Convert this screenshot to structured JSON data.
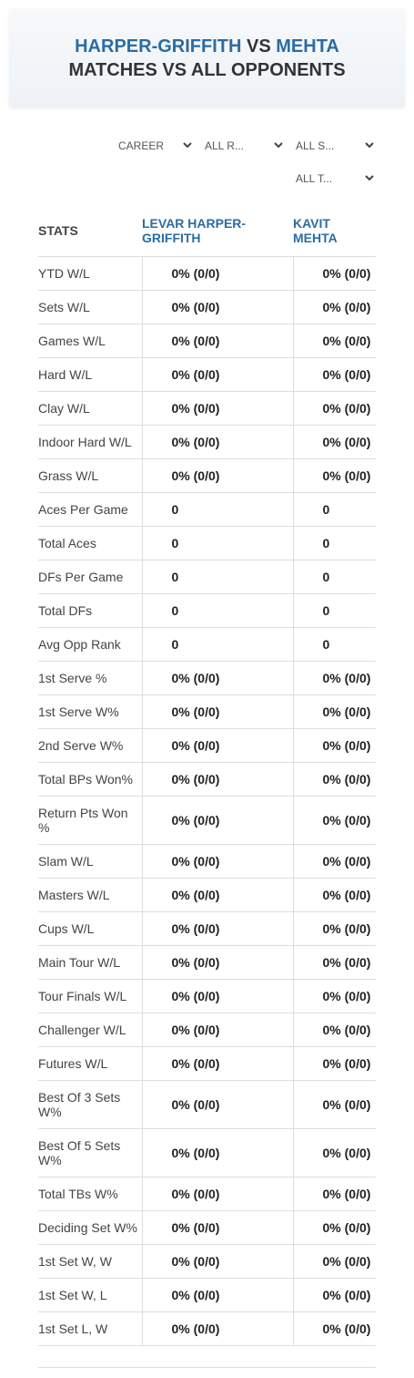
{
  "header": {
    "player1": "HARPER-GRIFFITH",
    "vs": "VS",
    "player2": "MEHTA",
    "subtitle": "MATCHES VS ALL OPPONENTS"
  },
  "filters": [
    "CAREER",
    "ALL R...",
    "ALL S...",
    "ALL T..."
  ],
  "table": {
    "columns": [
      "STATS",
      "LEVAR HARPER-GRIFFITH",
      "KAVIT MEHTA"
    ],
    "rows": [
      [
        "YTD W/L",
        "0% (0/0)",
        "0% (0/0)"
      ],
      [
        "Sets W/L",
        "0% (0/0)",
        "0% (0/0)"
      ],
      [
        "Games W/L",
        "0% (0/0)",
        "0% (0/0)"
      ],
      [
        "Hard W/L",
        "0% (0/0)",
        "0% (0/0)"
      ],
      [
        "Clay W/L",
        "0% (0/0)",
        "0% (0/0)"
      ],
      [
        "Indoor Hard W/L",
        "0% (0/0)",
        "0% (0/0)"
      ],
      [
        "Grass W/L",
        "0% (0/0)",
        "0% (0/0)"
      ],
      [
        "Aces Per Game",
        "0",
        "0"
      ],
      [
        "Total Aces",
        "0",
        "0"
      ],
      [
        "DFs Per Game",
        "0",
        "0"
      ],
      [
        "Total DFs",
        "0",
        "0"
      ],
      [
        "Avg Opp Rank",
        "0",
        "0"
      ],
      [
        "1st Serve %",
        "0% (0/0)",
        "0% (0/0)"
      ],
      [
        "1st Serve W%",
        "0% (0/0)",
        "0% (0/0)"
      ],
      [
        "2nd Serve W%",
        "0% (0/0)",
        "0% (0/0)"
      ],
      [
        "Total BPs Won%",
        "0% (0/0)",
        "0% (0/0)"
      ],
      [
        "Return Pts Won %",
        "0% (0/0)",
        "0% (0/0)"
      ],
      [
        "Slam W/L",
        "0% (0/0)",
        "0% (0/0)"
      ],
      [
        "Masters W/L",
        "0% (0/0)",
        "0% (0/0)"
      ],
      [
        "Cups W/L",
        "0% (0/0)",
        "0% (0/0)"
      ],
      [
        "Main Tour W/L",
        "0% (0/0)",
        "0% (0/0)"
      ],
      [
        "Tour Finals W/L",
        "0% (0/0)",
        "0% (0/0)"
      ],
      [
        "Challenger W/L",
        "0% (0/0)",
        "0% (0/0)"
      ],
      [
        "Futures W/L",
        "0% (0/0)",
        "0% (0/0)"
      ],
      [
        "Best Of 3 Sets W%",
        "0% (0/0)",
        "0% (0/0)"
      ],
      [
        "Best Of 5 Sets W%",
        "0% (0/0)",
        "0% (0/0)"
      ],
      [
        "Total TBs W%",
        "0% (0/0)",
        "0% (0/0)"
      ],
      [
        "Deciding Set W%",
        "0% (0/0)",
        "0% (0/0)"
      ],
      [
        "1st Set W, W",
        "0% (0/0)",
        "0% (0/0)"
      ],
      [
        "1st Set W, L",
        "0% (0/0)",
        "0% (0/0)"
      ],
      [
        "1st Set L, W",
        "0% (0/0)",
        "0% (0/0)"
      ]
    ]
  }
}
